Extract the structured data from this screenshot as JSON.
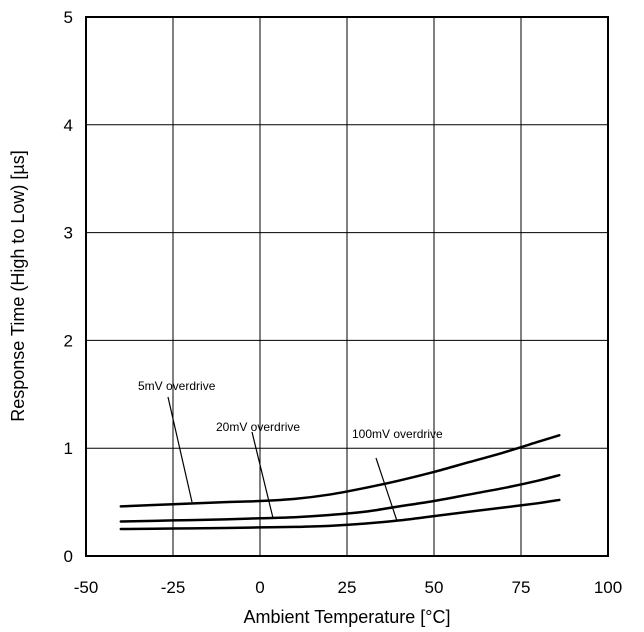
{
  "chart_data": {
    "type": "line",
    "title": "",
    "xlabel": "Ambient Temperature [°C]",
    "ylabel": "Response Time (High to Low) [µs]",
    "xlim": [
      -50,
      100
    ],
    "ylim": [
      0,
      5
    ],
    "xticks": [
      -50,
      -25,
      0,
      25,
      50,
      75,
      100
    ],
    "yticks": [
      0,
      1,
      2,
      3,
      4,
      5
    ],
    "grid": true,
    "legend": "none",
    "series": [
      {
        "label": "5mV overdrive",
        "x": [
          -40,
          -25,
          -10,
          0,
          10,
          20,
          30,
          40,
          50,
          60,
          70,
          80,
          86
        ],
        "y": [
          0.46,
          0.48,
          0.5,
          0.51,
          0.53,
          0.57,
          0.63,
          0.7,
          0.78,
          0.87,
          0.96,
          1.06,
          1.12
        ]
      },
      {
        "label": "20mV overdrive",
        "x": [
          -40,
          -25,
          -10,
          0,
          10,
          20,
          30,
          40,
          50,
          60,
          70,
          80,
          86
        ],
        "y": [
          0.32,
          0.33,
          0.34,
          0.35,
          0.36,
          0.38,
          0.41,
          0.46,
          0.51,
          0.57,
          0.63,
          0.7,
          0.75
        ]
      },
      {
        "label": "100mV overdrive",
        "x": [
          -40,
          -25,
          -10,
          0,
          10,
          20,
          30,
          40,
          50,
          60,
          70,
          80,
          86
        ],
        "y": [
          0.25,
          0.255,
          0.26,
          0.265,
          0.27,
          0.28,
          0.3,
          0.33,
          0.37,
          0.41,
          0.45,
          0.49,
          0.52
        ]
      }
    ],
    "annotations": [
      {
        "text": "5mV overdrive",
        "series": 0,
        "points_to_x": -20
      },
      {
        "text": "20mV overdrive",
        "series": 1,
        "points_to_x": 5
      },
      {
        "text": "100mV overdrive",
        "series": 2,
        "points_to_x": 38
      }
    ]
  }
}
